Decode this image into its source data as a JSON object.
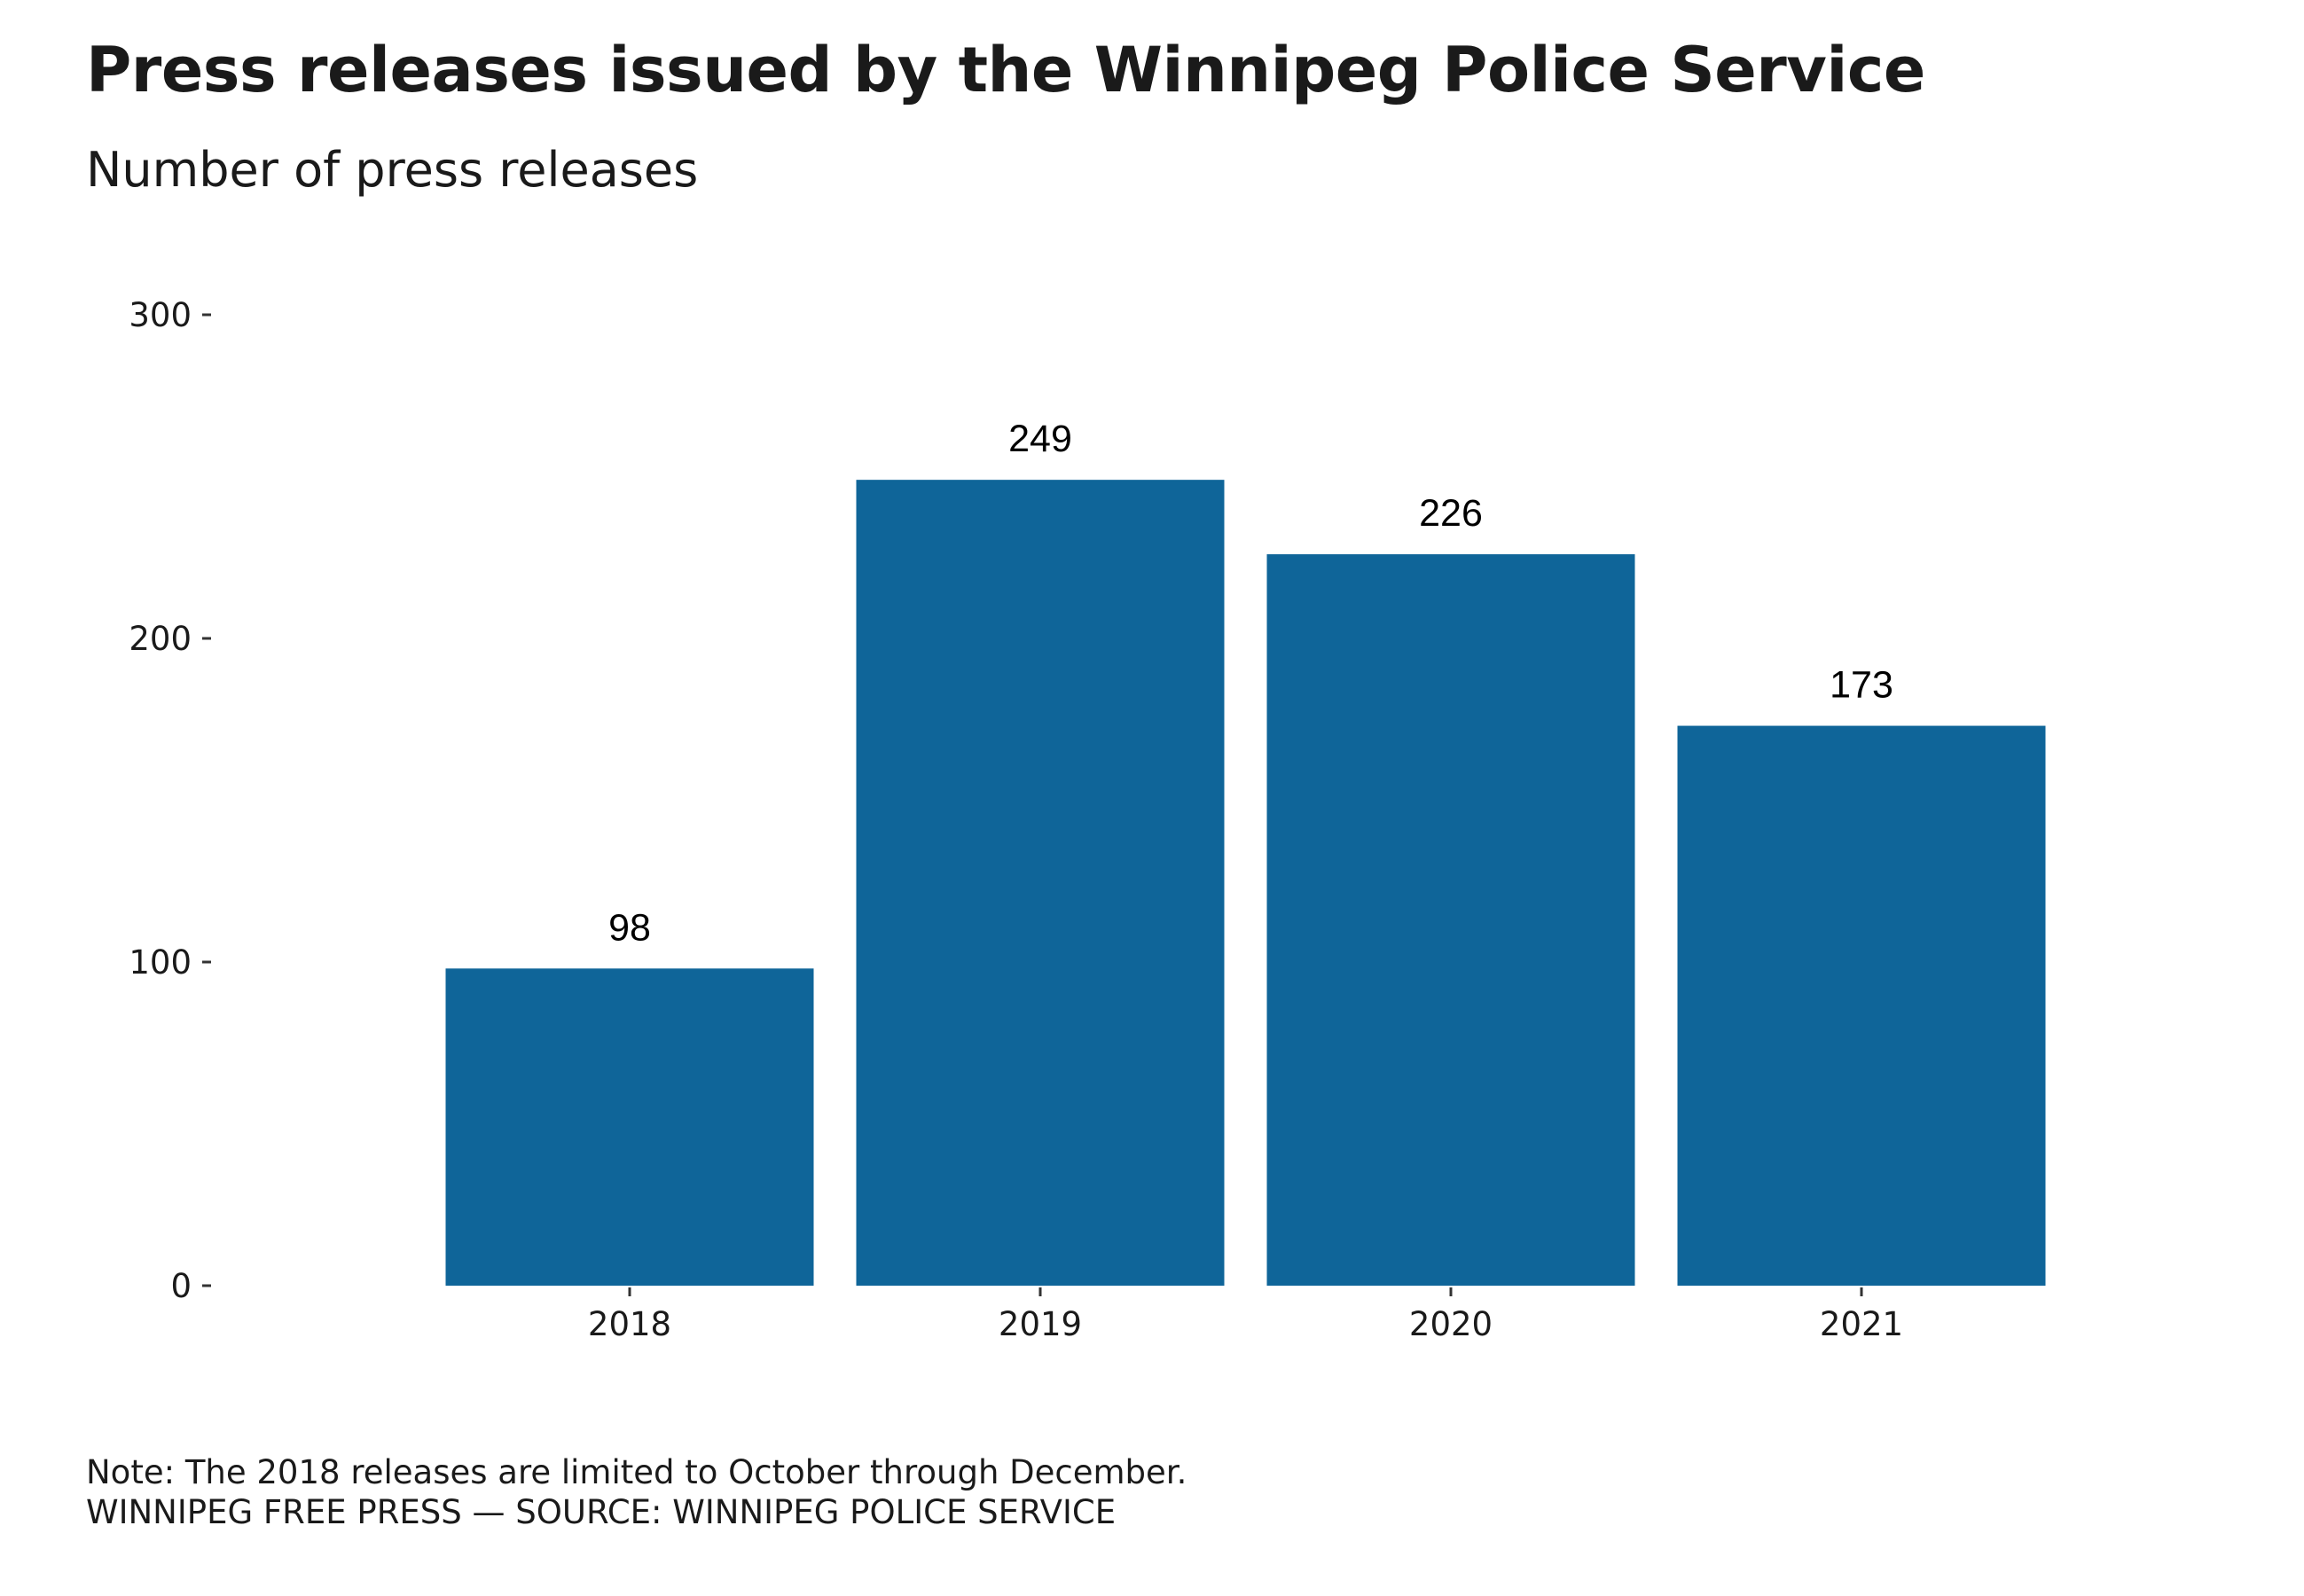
{
  "chart_data": {
    "type": "bar",
    "title": "Press releases issued by the Winnipeg Police Service",
    "subtitle": "Number of press releases",
    "categories": [
      "2018",
      "2019",
      "2020",
      "2021"
    ],
    "values": [
      98,
      249,
      226,
      173
    ],
    "data_labels": [
      "98",
      "249",
      "226",
      "173"
    ],
    "xlabel": "",
    "ylabel": "",
    "ylim": [
      0,
      300
    ],
    "yticks": [
      0,
      100,
      200,
      300
    ],
    "ytick_labels": [
      "0",
      "100",
      "200",
      "300"
    ],
    "grid": false,
    "legend": "none",
    "bar_color": "#0f6599",
    "note": "Note: The 2018 releases are limited to October through December.",
    "source": "WINNIPEG FREE PRESS — SOURCE: WINNIPEG POLICE SERVICE"
  }
}
